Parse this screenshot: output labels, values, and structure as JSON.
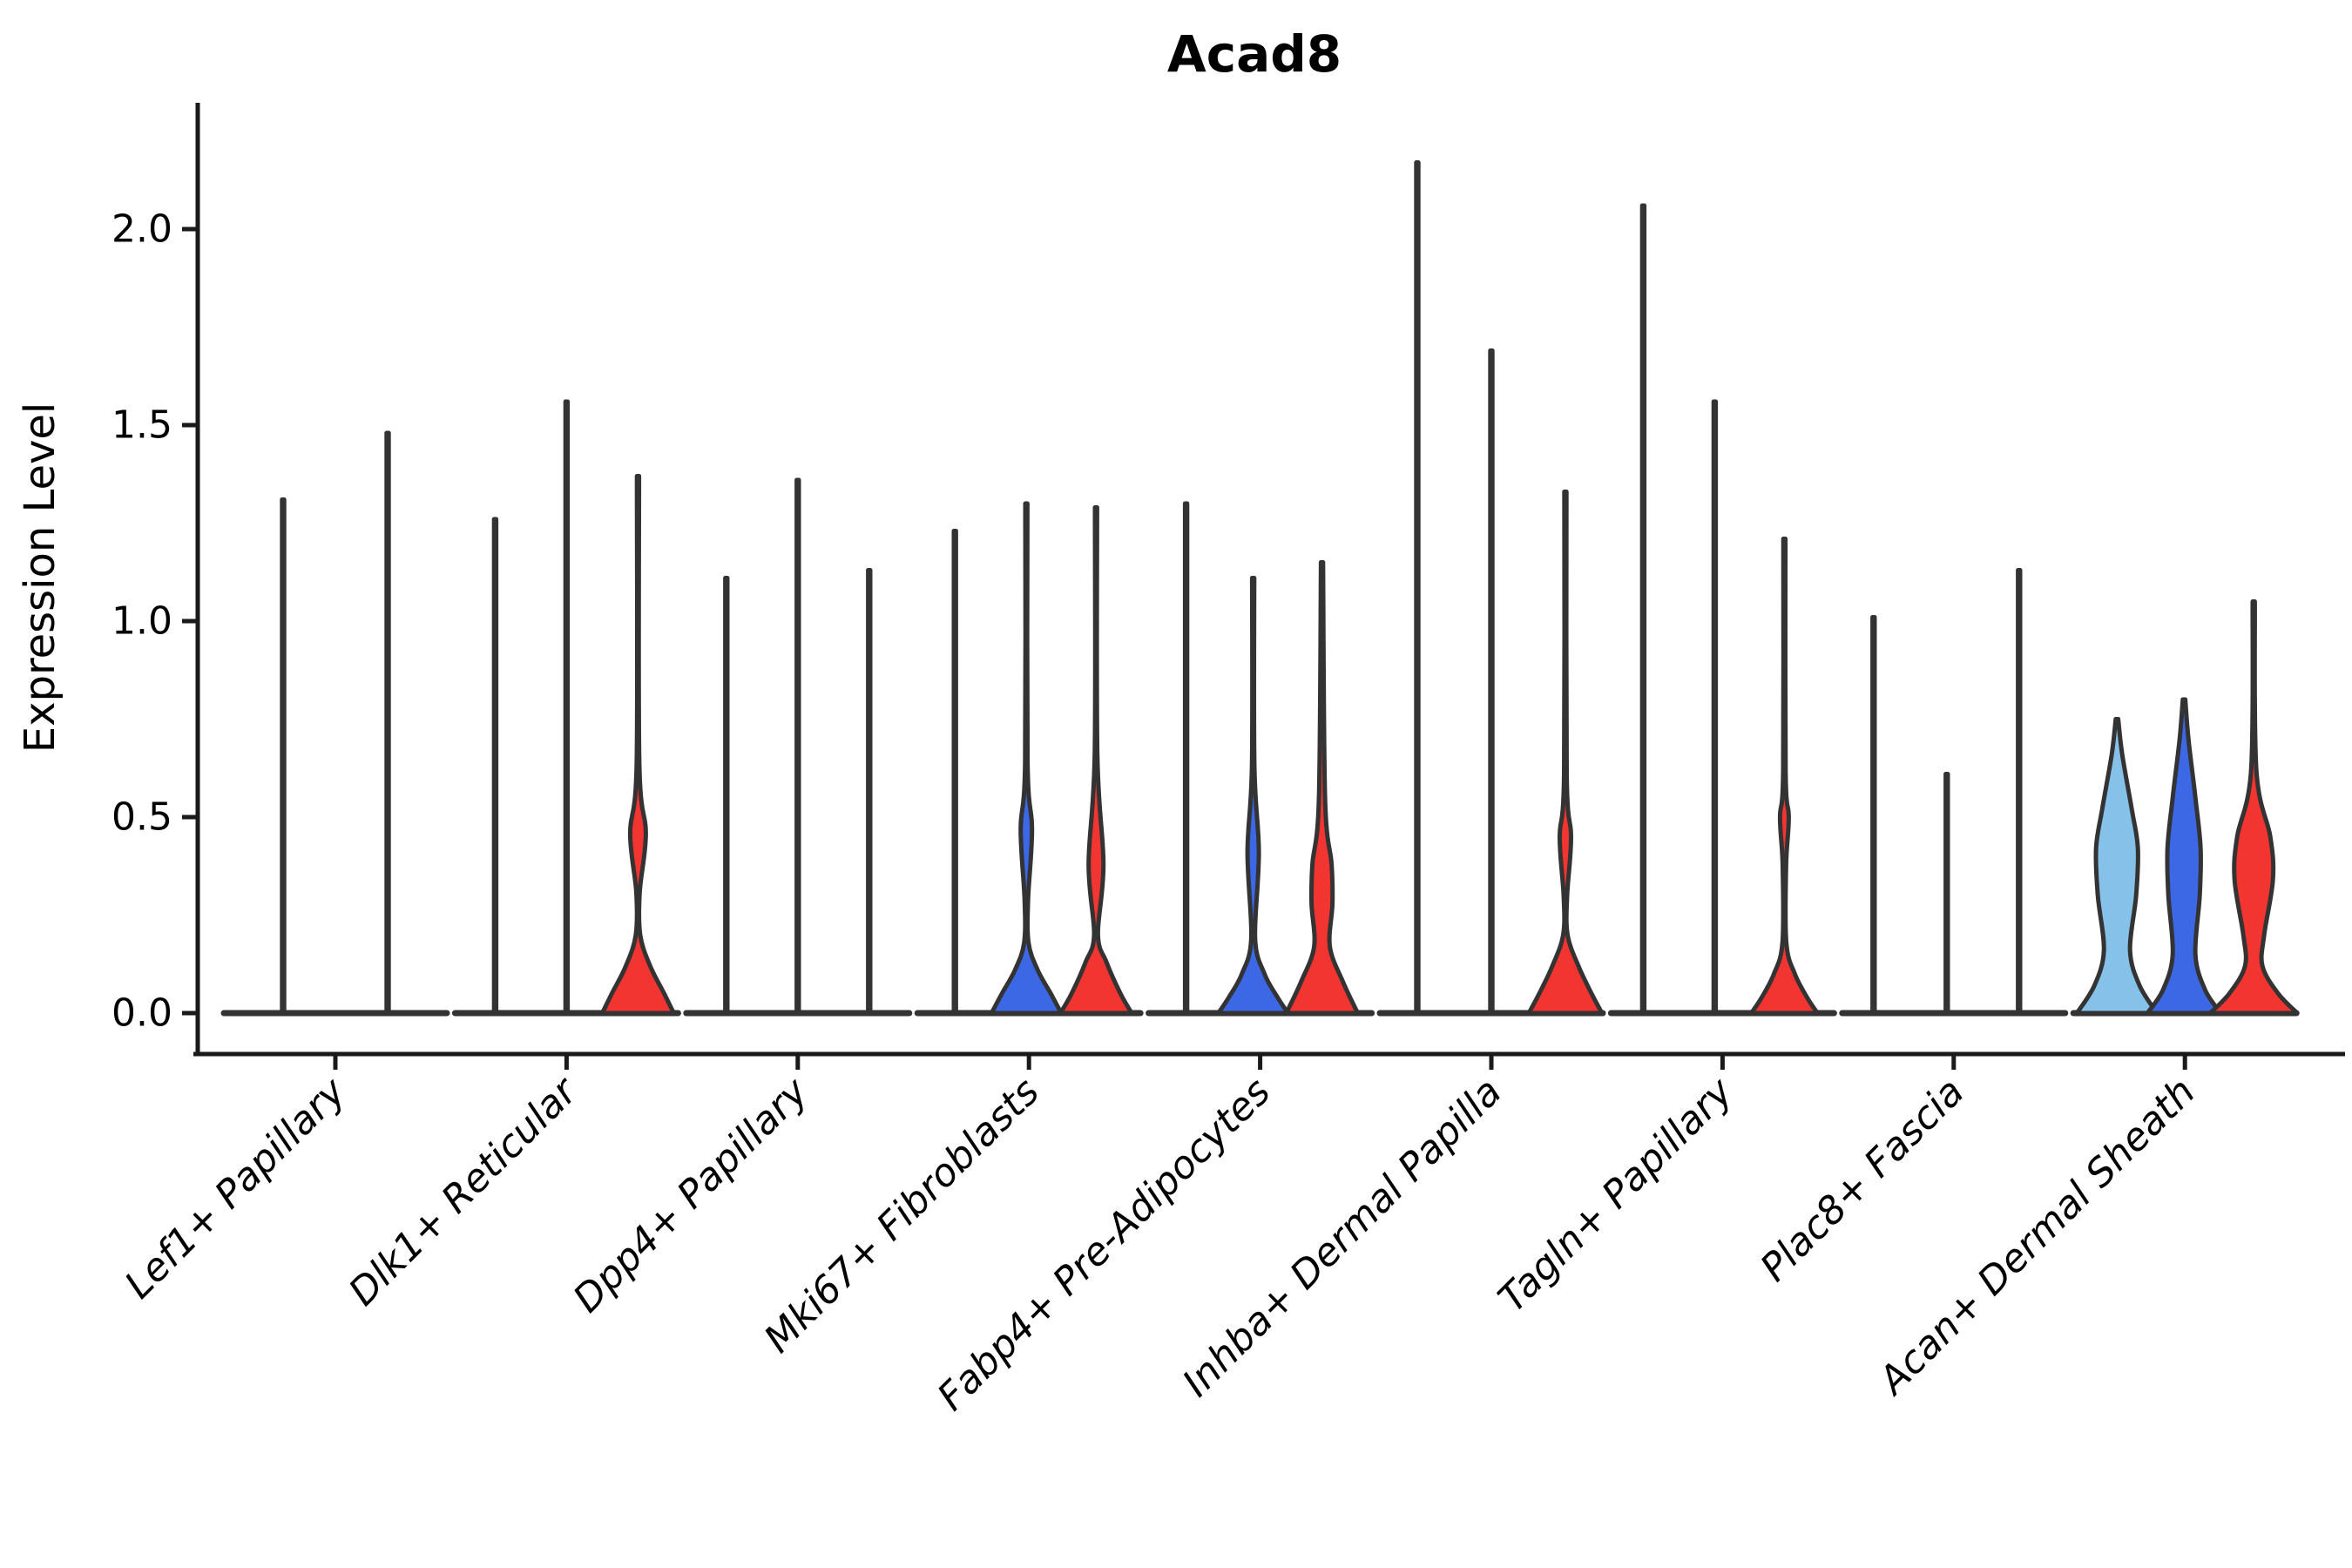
{
  "chart_data": {
    "type": "violin",
    "title": "Acad8",
    "ylabel": "Expression Level",
    "ytick_labels": [
      "0.0",
      "0.5",
      "1.0",
      "1.5",
      "2.0"
    ],
    "yticks": [
      0.0,
      0.5,
      1.0,
      1.5,
      2.0
    ],
    "ylim": [
      0.0,
      2.32
    ],
    "grid": false,
    "legend": "none",
    "split_colors": [
      "#85C1E8",
      "#3C68E6",
      "#F23530"
    ],
    "outline_color": "#333333",
    "flat_violin_color": "#3a3a3a",
    "categories": [
      {
        "label": "Lef1+ Papillary",
        "violins": [
          {
            "color": null,
            "max": 1.31,
            "offset": -60
          },
          {
            "color": null,
            "max": 1.48,
            "offset": 60
          }
        ]
      },
      {
        "label": "Dlk1+ Reticular",
        "violins": [
          {
            "color": null,
            "max": 1.26,
            "offset": -82
          },
          {
            "color": null,
            "max": 1.56,
            "offset": 0
          },
          {
            "color": "#F23530",
            "max": 1.37,
            "offset": 82,
            "profile": [
              [
                1.37,
                1.2
              ],
              [
                0.64,
                1.5
              ],
              [
                0.46,
                9
              ],
              [
                0.31,
                2
              ],
              [
                0.2,
                2.5
              ],
              [
                0.12,
                14
              ],
              [
                0.05,
                30
              ],
              [
                0,
                41
              ]
            ]
          }
        ]
      },
      {
        "label": "Dpp4+ Papillary",
        "violins": [
          {
            "color": null,
            "max": 1.11,
            "offset": -82
          },
          {
            "color": null,
            "max": 1.36,
            "offset": 0
          },
          {
            "color": null,
            "max": 1.13,
            "offset": 82
          }
        ]
      },
      {
        "label": "Mki67+ Fibroblasts",
        "violins": [
          {
            "color": null,
            "max": 1.23,
            "offset": -85
          },
          {
            "color": "#3C68E6",
            "max": 1.3,
            "offset": -3,
            "profile": [
              [
                1.3,
                1.2
              ],
              [
                0.64,
                1.4
              ],
              [
                0.47,
                6.5
              ],
              [
                0.29,
                2
              ],
              [
                0.18,
                2.5
              ],
              [
                0.11,
                13
              ],
              [
                0.05,
                28
              ],
              [
                0,
                40
              ]
            ]
          },
          {
            "color": "#F23530",
            "max": 1.29,
            "offset": 77,
            "profile": [
              [
                1.29,
                1.2
              ],
              [
                0.66,
                1.5
              ],
              [
                0.38,
                8.5
              ],
              [
                0.2,
                2.2
              ],
              [
                0.13,
                12
              ],
              [
                0.05,
                28
              ],
              [
                0,
                41
              ]
            ]
          }
        ]
      },
      {
        "label": "Fabp4+ Pre-Adipocytes",
        "violins": [
          {
            "color": null,
            "max": 1.3,
            "offset": -85
          },
          {
            "color": "#3C68E6",
            "max": 1.11,
            "offset": -8,
            "profile": [
              [
                1.11,
                1.2
              ],
              [
                0.63,
                1.4
              ],
              [
                0.41,
                6.5
              ],
              [
                0.19,
                2.2
              ],
              [
                0.1,
                13
              ],
              [
                0.04,
                28
              ],
              [
                0,
                40
              ]
            ]
          },
          {
            "color": "#F23530",
            "max": 1.15,
            "offset": 71,
            "profile": [
              [
                1.15,
                1.2
              ],
              [
                0.55,
                3.5
              ],
              [
                0.38,
                11
              ],
              [
                0.28,
                12
              ],
              [
                0.17,
                9
              ],
              [
                0.08,
                24
              ],
              [
                0,
                41
              ]
            ]
          }
        ]
      },
      {
        "label": "Inhba+ Dermal Papilla",
        "violins": [
          {
            "color": null,
            "max": 2.17,
            "offset": -85
          },
          {
            "color": null,
            "max": 1.69,
            "offset": 0
          },
          {
            "color": "#F23530",
            "max": 1.33,
            "offset": 85,
            "profile": [
              [
                1.33,
                1.2
              ],
              [
                0.61,
                1.5
              ],
              [
                0.45,
                6.5
              ],
              [
                0.3,
                2
              ],
              [
                0.2,
                2.5
              ],
              [
                0.12,
                15
              ],
              [
                0.05,
                30
              ],
              [
                0,
                42
              ]
            ]
          }
        ]
      },
      {
        "label": "Tagln+ Papillary",
        "violins": [
          {
            "color": null,
            "max": 2.06,
            "offset": -91
          },
          {
            "color": null,
            "max": 1.56,
            "offset": -9
          },
          {
            "color": "#F23530",
            "max": 1.21,
            "offset": 71,
            "profile": [
              [
                1.21,
                1.2
              ],
              [
                0.62,
                1.4
              ],
              [
                0.5,
                5
              ],
              [
                0.38,
                2
              ],
              [
                0.18,
                2.2
              ],
              [
                0.1,
                12
              ],
              [
                0.04,
                26
              ],
              [
                0,
                38
              ]
            ]
          }
        ]
      },
      {
        "label": "Plac8+ Fascia",
        "violins": [
          {
            "color": null,
            "max": 1.01,
            "offset": -92
          },
          {
            "color": null,
            "max": 0.61,
            "offset": -8
          },
          {
            "color": null,
            "max": 1.13,
            "offset": 75
          }
        ]
      },
      {
        "label": "Acan+ Dermal Sheath",
        "violins": [
          {
            "color": "#85C1E8",
            "max": 0.75,
            "offset": -78,
            "profile": [
              [
                0.75,
                1.4
              ],
              [
                0.66,
                6
              ],
              [
                0.52,
                17
              ],
              [
                0.42,
                24
              ],
              [
                0.3,
                22
              ],
              [
                0.16,
                15
              ],
              [
                0.07,
                26
              ],
              [
                0,
                46
              ]
            ]
          },
          {
            "color": "#3C68E6",
            "max": 0.8,
            "offset": -1,
            "profile": [
              [
                0.8,
                1.4
              ],
              [
                0.7,
                5
              ],
              [
                0.55,
                13
              ],
              [
                0.42,
                19
              ],
              [
                0.3,
                18
              ],
              [
                0.15,
                13
              ],
              [
                0.06,
                24
              ],
              [
                0,
                42
              ]
            ]
          },
          {
            "color": "#F23530",
            "max": 1.05,
            "offset": 79,
            "profile": [
              [
                1.05,
                1.2
              ],
              [
                0.62,
                3
              ],
              [
                0.45,
                19
              ],
              [
                0.34,
                22
              ],
              [
                0.2,
                12
              ],
              [
                0.12,
                10
              ],
              [
                0.05,
                28
              ],
              [
                0,
                50
              ]
            ]
          }
        ]
      }
    ]
  }
}
